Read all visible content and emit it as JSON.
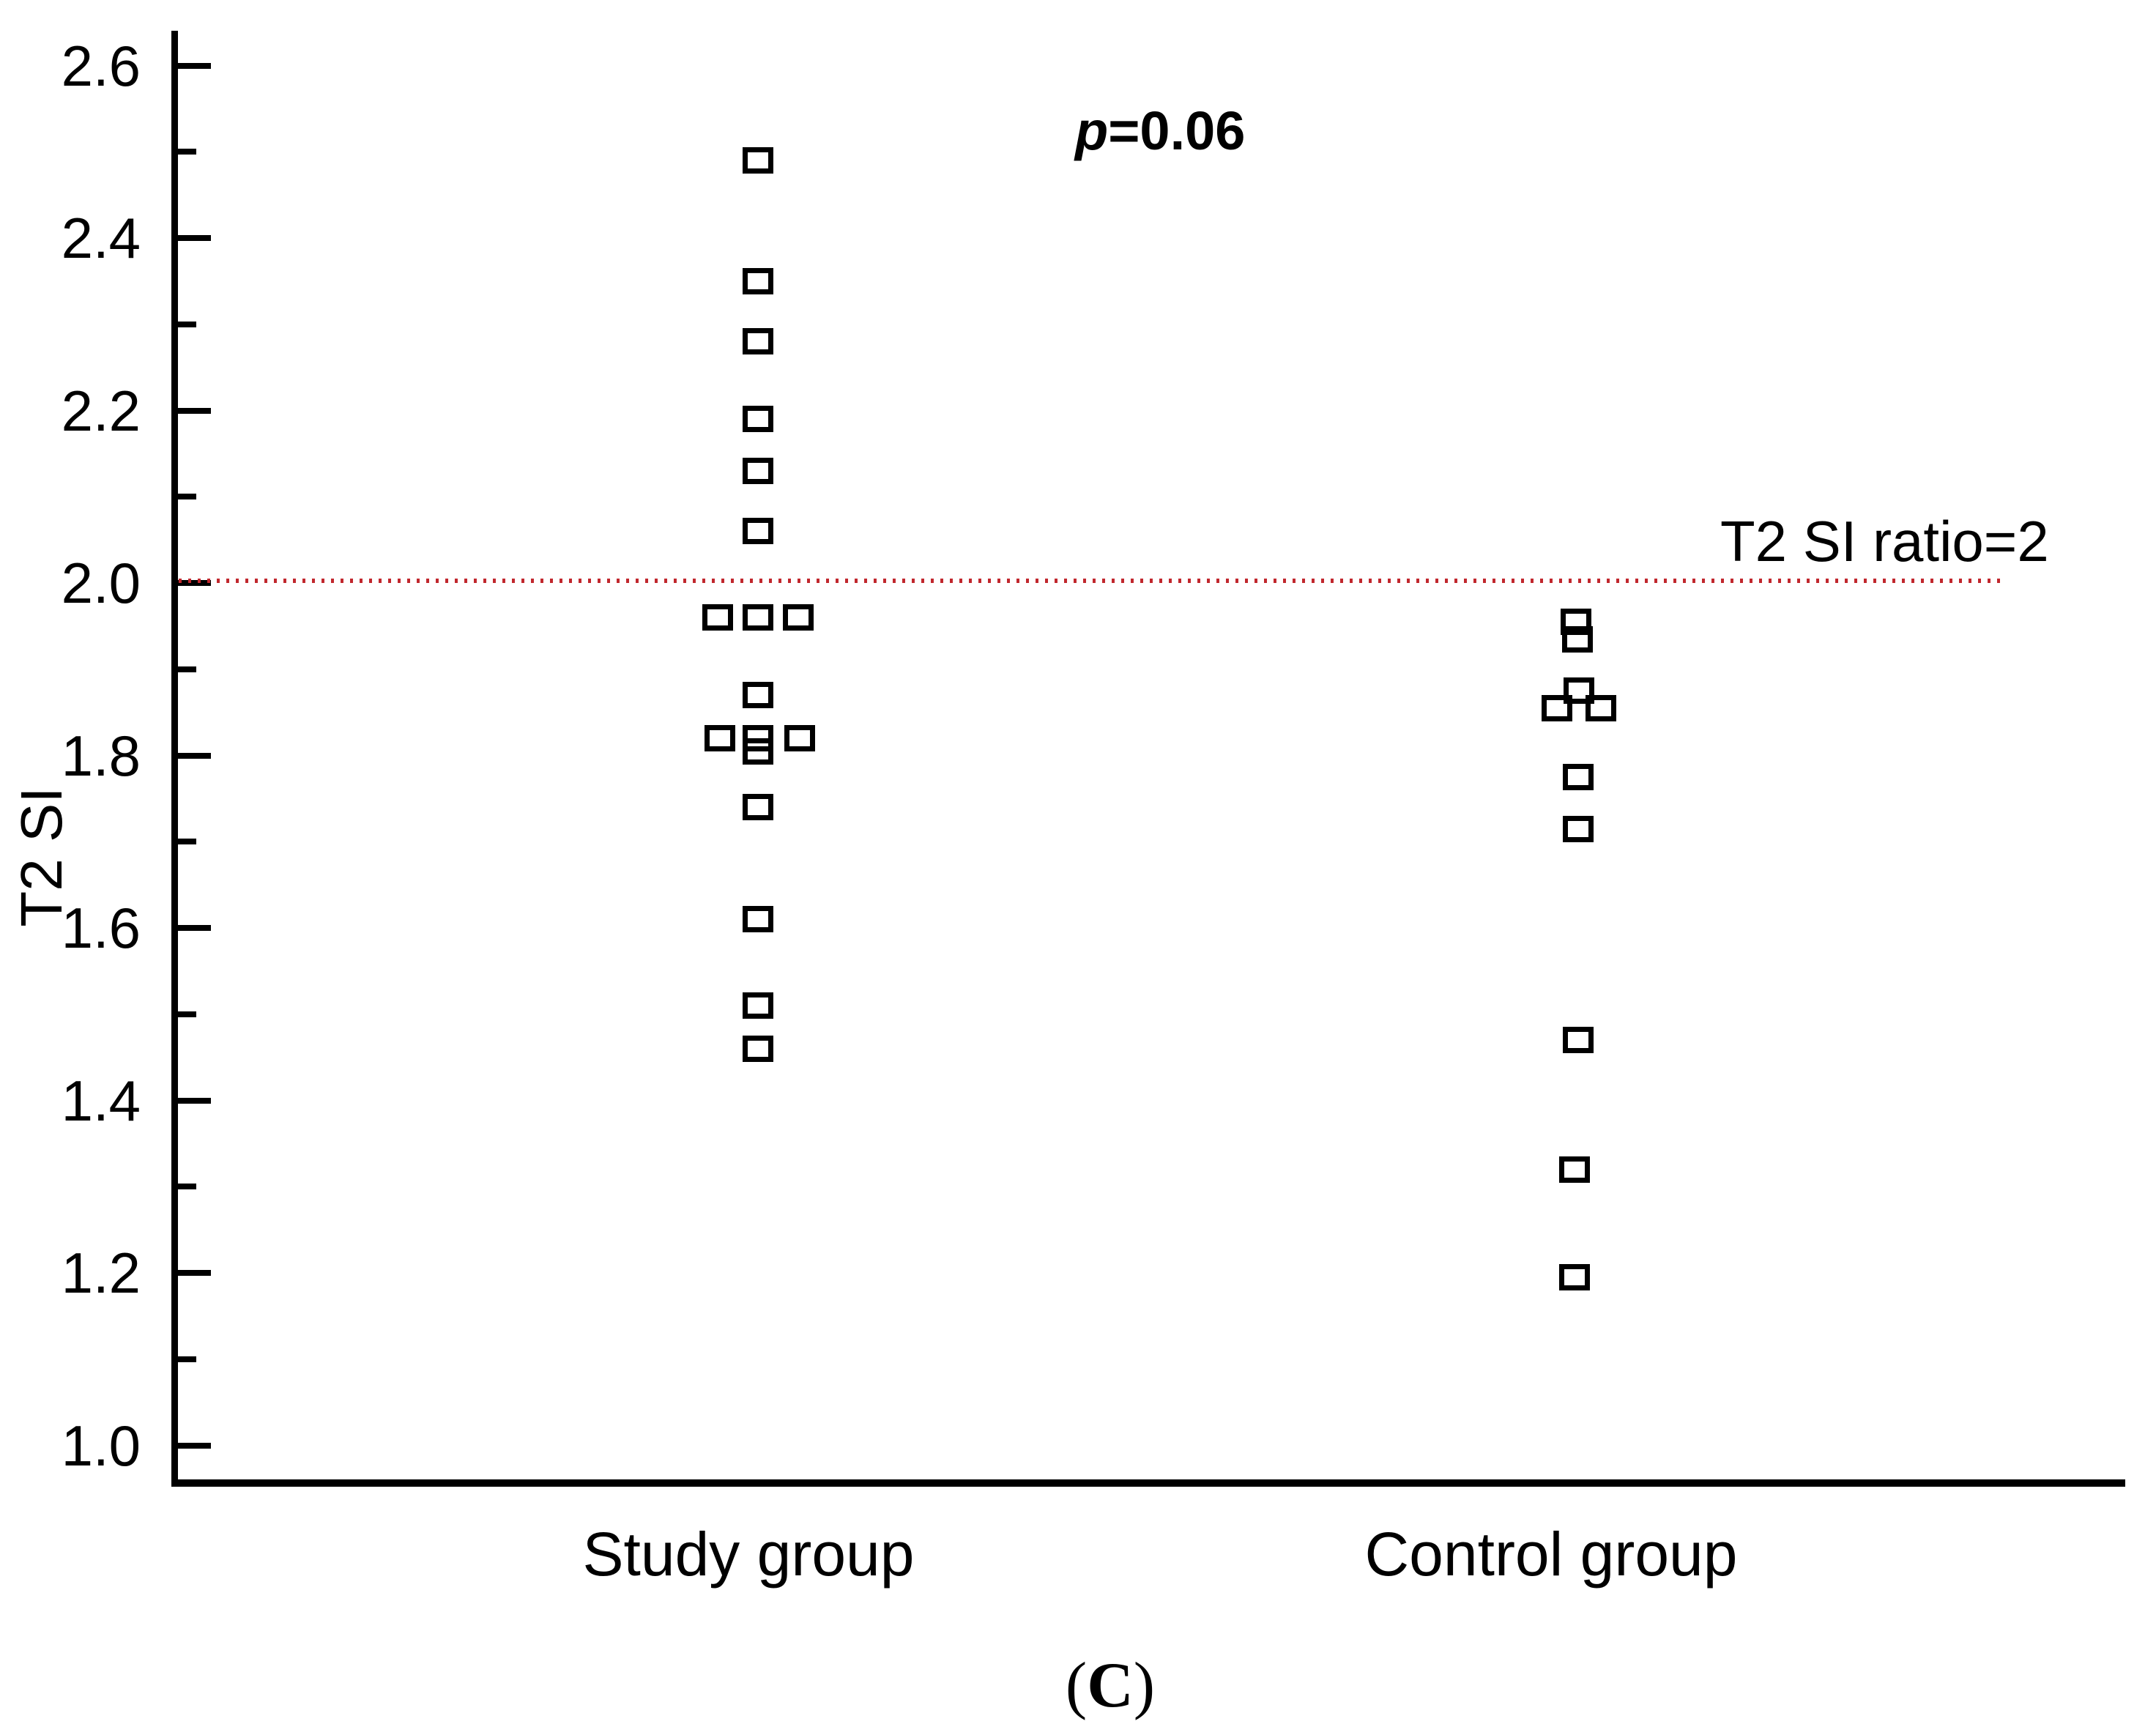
{
  "chart_data": {
    "type": "scatter",
    "title": "",
    "xlabel": "",
    "ylabel": "T2 SI",
    "ylim": [
      0.96,
      2.64
    ],
    "grid": false,
    "legend": false,
    "marker": "open-square",
    "categories": [
      "Study group",
      "Control group"
    ],
    "y_major_ticks": [
      2.6,
      2.4,
      2.2,
      2.0,
      1.8,
      1.6,
      1.4,
      1.2,
      1.0
    ],
    "y_major_tick_labels": [
      "2.6",
      "2.4",
      "2.2",
      "2.0",
      "1.8",
      "1.6",
      "1.4",
      "1.2",
      "1.0"
    ],
    "y_minor_ticks": [
      2.5,
      2.3,
      2.1,
      1.9,
      1.7,
      1.5,
      1.3,
      1.1
    ],
    "reference_line": {
      "value": 2.0,
      "label": "T2 SI ratio=2",
      "style": "dotted",
      "color": "#c1272d"
    },
    "annotation": {
      "text": "p=0.06",
      "italic_prefix": "p",
      "rest": "=0.06",
      "bold": true
    },
    "series": [
      {
        "name": "Study group",
        "points": [
          {
            "y": 2.49,
            "dx": 0
          },
          {
            "y": 2.35,
            "dx": 0
          },
          {
            "y": 2.28,
            "dx": 0
          },
          {
            "y": 2.19,
            "dx": 0
          },
          {
            "y": 2.13,
            "dx": 0
          },
          {
            "y": 2.06,
            "dx": 0
          },
          {
            "y": 1.96,
            "dx": -55
          },
          {
            "y": 1.96,
            "dx": 0
          },
          {
            "y": 1.96,
            "dx": 55
          },
          {
            "y": 1.87,
            "dx": 0
          },
          {
            "y": 1.82,
            "dx": -52
          },
          {
            "y": 1.82,
            "dx": 0
          },
          {
            "y": 1.805,
            "dx": 0
          },
          {
            "y": 1.82,
            "dx": 57
          },
          {
            "y": 1.74,
            "dx": 0
          },
          {
            "y": 1.61,
            "dx": 0
          },
          {
            "y": 1.51,
            "dx": 0
          },
          {
            "y": 1.46,
            "dx": 0
          }
        ]
      },
      {
        "name": "Control group",
        "points": [
          {
            "y": 1.955,
            "dx": 2
          },
          {
            "y": 1.935,
            "dx": 4
          },
          {
            "y": 1.875,
            "dx": 6
          },
          {
            "y": 1.855,
            "dx": -24
          },
          {
            "y": 1.855,
            "dx": 36
          },
          {
            "y": 1.775,
            "dx": 5
          },
          {
            "y": 1.715,
            "dx": 5
          },
          {
            "y": 1.47,
            "dx": 5
          },
          {
            "y": 1.32,
            "dx": 0
          },
          {
            "y": 1.195,
            "dx": 0
          }
        ]
      }
    ]
  },
  "caption": {
    "open": "(",
    "letter": "C",
    "close": ")"
  },
  "colors": {
    "marker": "#000000",
    "axis": "#000000",
    "text": "#000000",
    "reference": "#c1272d",
    "background": "#ffffff"
  }
}
